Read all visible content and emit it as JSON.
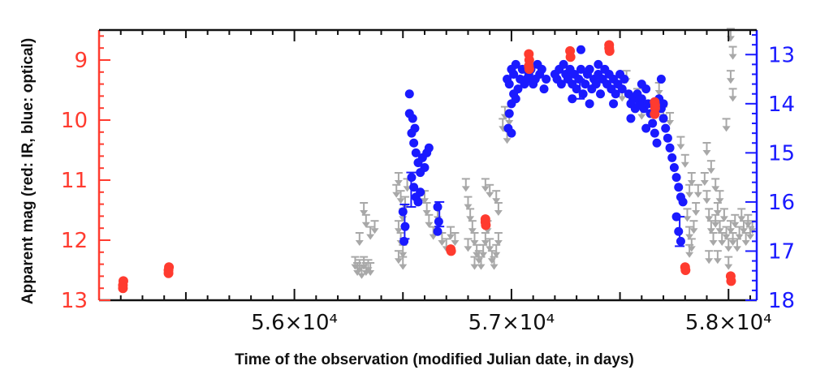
{
  "chart_data": {
    "type": "scatter",
    "title": "",
    "xlabel": "Time of the observation (modified Julian date, in days)",
    "ylabel": "Apparent mag (red: IR, blue: optical)",
    "xlim": [
      55100,
      58130
    ],
    "ylim_left": [
      13,
      8.5
    ],
    "ylim_right": [
      18,
      12.5
    ],
    "y_inverted": true,
    "grid": false,
    "legend": "none",
    "x_ticks": [
      {
        "value": 56000,
        "label": "5.6×10⁴"
      },
      {
        "value": 57000,
        "label": "5.7×10⁴"
      },
      {
        "value": 58000,
        "label": "5.8×10⁴"
      }
    ],
    "y_left_ticks": [
      {
        "value": 9,
        "label": "9"
      },
      {
        "value": 10,
        "label": "10"
      },
      {
        "value": 11,
        "label": "11"
      },
      {
        "value": 12,
        "label": "12"
      },
      {
        "value": 13,
        "label": "13"
      }
    ],
    "y_right_ticks": [
      {
        "value": 13,
        "label": "13"
      },
      {
        "value": 14,
        "label": "14"
      },
      {
        "value": 15,
        "label": "15"
      },
      {
        "value": 16,
        "label": "16"
      },
      {
        "value": 17,
        "label": "17"
      },
      {
        "value": 18,
        "label": "18"
      }
    ],
    "colors": {
      "ir": "#ff3b2f",
      "optical": "#1a1aff",
      "upper_limit": "#a8a8a8",
      "left_axis": "#ff3b2f",
      "right_axis": "#1a1aff",
      "bottom_axis": "#111111"
    },
    "series": [
      {
        "name": "IR",
        "axis": "left",
        "points": [
          [
            55210,
            12.75
          ],
          [
            55212,
            12.68
          ],
          [
            55210,
            12.8
          ],
          [
            55420,
            12.55
          ],
          [
            55422,
            12.45
          ],
          [
            55420,
            12.5
          ],
          [
            56720,
            12.15
          ],
          [
            56722,
            12.18
          ],
          [
            56880,
            11.7
          ],
          [
            56882,
            11.75
          ],
          [
            56880,
            11.65
          ],
          [
            57080,
            8.9
          ],
          [
            57082,
            9.0
          ],
          [
            57080,
            9.1
          ],
          [
            57082,
            9.15
          ],
          [
            57270,
            8.85
          ],
          [
            57272,
            8.95
          ],
          [
            57450,
            8.75
          ],
          [
            57452,
            8.85
          ],
          [
            57450,
            8.8
          ],
          [
            57660,
            9.7
          ],
          [
            57662,
            9.8
          ],
          [
            57660,
            9.9
          ],
          [
            57662,
            9.75
          ],
          [
            57800,
            12.45
          ],
          [
            57802,
            12.5
          ],
          [
            58010,
            12.6
          ],
          [
            58012,
            12.68
          ]
        ]
      },
      {
        "name": "optical",
        "axis": "right",
        "points": [
          [
            56530,
            14.2
          ],
          [
            56540,
            14.6
          ],
          [
            56550,
            14.8
          ],
          [
            56560,
            15.0
          ],
          [
            56570,
            15.2
          ],
          [
            56580,
            15.4
          ],
          [
            56590,
            15.1
          ],
          [
            56600,
            15.3
          ],
          [
            56610,
            15.0
          ],
          [
            56620,
            14.9
          ],
          [
            56540,
            15.5
          ],
          [
            56550,
            15.7
          ],
          [
            56560,
            15.9
          ],
          [
            56570,
            16.0
          ],
          [
            56580,
            15.8
          ],
          [
            56500,
            16.2
          ],
          [
            56510,
            16.5
          ],
          [
            56505,
            16.8
          ],
          [
            56530,
            13.8
          ],
          [
            56545,
            14.3
          ],
          [
            56555,
            14.5
          ],
          [
            56660,
            16.1
          ],
          [
            56665,
            16.4
          ],
          [
            56660,
            16.6
          ],
          [
            56980,
            13.5
          ],
          [
            56990,
            13.6
          ],
          [
            57000,
            13.3
          ],
          [
            57010,
            13.4
          ],
          [
            57020,
            13.2
          ],
          [
            57030,
            13.7
          ],
          [
            57040,
            13.5
          ],
          [
            57050,
            13.3
          ],
          [
            57060,
            13.6
          ],
          [
            57000,
            14.0
          ],
          [
            57010,
            13.8
          ],
          [
            57020,
            13.9
          ],
          [
            56990,
            14.2
          ],
          [
            56985,
            14.5
          ],
          [
            57000,
            14.6
          ],
          [
            57070,
            13.5
          ],
          [
            57080,
            13.4
          ],
          [
            57090,
            13.3
          ],
          [
            57100,
            13.6
          ],
          [
            57110,
            13.5
          ],
          [
            57120,
            13.2
          ],
          [
            57130,
            13.4
          ],
          [
            57140,
            13.3
          ],
          [
            57150,
            13.7
          ],
          [
            57160,
            13.5
          ],
          [
            57200,
            13.4
          ],
          [
            57210,
            13.5
          ],
          [
            57220,
            13.3
          ],
          [
            57230,
            13.6
          ],
          [
            57240,
            13.2
          ],
          [
            57250,
            13.4
          ],
          [
            57260,
            13.5
          ],
          [
            57270,
            13.3
          ],
          [
            57280,
            13.6
          ],
          [
            57290,
            13.4
          ],
          [
            57300,
            13.7
          ],
          [
            57310,
            13.5
          ],
          [
            57320,
            13.3
          ],
          [
            57330,
            13.8
          ],
          [
            57340,
            13.6
          ],
          [
            57350,
            13.4
          ],
          [
            57360,
            13.3
          ],
          [
            57370,
            13.7
          ],
          [
            57380,
            13.5
          ],
          [
            57390,
            13.6
          ],
          [
            57400,
            13.4
          ],
          [
            57410,
            13.8
          ],
          [
            57420,
            13.5
          ],
          [
            57430,
            13.3
          ],
          [
            57440,
            13.6
          ],
          [
            57450,
            13.4
          ],
          [
            57460,
            13.7
          ],
          [
            57470,
            13.5
          ],
          [
            57480,
            13.8
          ],
          [
            57490,
            13.6
          ],
          [
            57500,
            13.4
          ],
          [
            57510,
            13.7
          ],
          [
            57520,
            13.5
          ],
          [
            57320,
            12.9
          ],
          [
            57400,
            13.2
          ],
          [
            57280,
            13.9
          ],
          [
            57360,
            14.0
          ],
          [
            57470,
            14.0
          ],
          [
            57540,
            13.8
          ],
          [
            57550,
            14.0
          ],
          [
            57560,
            13.9
          ],
          [
            57570,
            14.1
          ],
          [
            57580,
            13.8
          ],
          [
            57590,
            14.0
          ],
          [
            57600,
            13.9
          ],
          [
            57610,
            14.1
          ],
          [
            57620,
            13.7
          ],
          [
            57630,
            14.0
          ],
          [
            57640,
            14.2
          ],
          [
            57650,
            14.4
          ],
          [
            57660,
            14.6
          ],
          [
            57670,
            14.8
          ],
          [
            57680,
            13.9
          ],
          [
            57690,
            14.1
          ],
          [
            57700,
            14.3
          ],
          [
            57710,
            14.5
          ],
          [
            57720,
            14.7
          ],
          [
            57730,
            14.9
          ],
          [
            57740,
            15.1
          ],
          [
            57750,
            15.3
          ],
          [
            57760,
            15.5
          ],
          [
            57770,
            15.7
          ],
          [
            57780,
            15.9
          ],
          [
            57790,
            16.0
          ],
          [
            57760,
            16.3
          ],
          [
            57770,
            16.6
          ],
          [
            57780,
            16.8
          ],
          [
            57690,
            13.5
          ],
          [
            57600,
            13.6
          ],
          [
            57550,
            14.3
          ],
          [
            57620,
            14.5
          ],
          [
            57700,
            14.0
          ]
        ]
      },
      {
        "name": "upper limits",
        "axis": "left",
        "points": [
          [
            56280,
            12.4
          ],
          [
            56290,
            12.5
          ],
          [
            56300,
            12.45
          ],
          [
            56310,
            12.55
          ],
          [
            56320,
            12.4
          ],
          [
            56330,
            12.5
          ],
          [
            56340,
            12.45
          ],
          [
            56350,
            12.5
          ],
          [
            56320,
            11.5
          ],
          [
            56330,
            11.7
          ],
          [
            56350,
            11.9
          ],
          [
            56370,
            11.8
          ],
          [
            56300,
            12.0
          ],
          [
            56480,
            11.0
          ],
          [
            56490,
            11.3
          ],
          [
            56500,
            11.6
          ],
          [
            56480,
            11.8
          ],
          [
            56490,
            12.0
          ],
          [
            56500,
            12.2
          ],
          [
            56510,
            11.4
          ],
          [
            56520,
            11.1
          ],
          [
            56480,
            12.3
          ],
          [
            56500,
            12.4
          ],
          [
            56470,
            11.2
          ],
          [
            56600,
            11.3
          ],
          [
            56610,
            11.5
          ],
          [
            56620,
            11.7
          ],
          [
            56640,
            11.9
          ],
          [
            56660,
            11.6
          ],
          [
            56680,
            12.0
          ],
          [
            56700,
            12.1
          ],
          [
            56720,
            11.9
          ],
          [
            56740,
            12.0
          ],
          [
            56790,
            11.1
          ],
          [
            56800,
            11.4
          ],
          [
            56810,
            11.6
          ],
          [
            56820,
            11.8
          ],
          [
            56830,
            12.0
          ],
          [
            56840,
            12.2
          ],
          [
            56850,
            12.3
          ],
          [
            56860,
            12.4
          ],
          [
            56870,
            12.2
          ],
          [
            56880,
            12.0
          ],
          [
            56890,
            11.8
          ],
          [
            56900,
            12.1
          ],
          [
            56910,
            12.3
          ],
          [
            56920,
            12.4
          ],
          [
            56930,
            12.2
          ],
          [
            56940,
            12.0
          ],
          [
            56800,
            12.1
          ],
          [
            56830,
            12.4
          ],
          [
            56880,
            11.1
          ],
          [
            56900,
            11.2
          ],
          [
            56930,
            11.3
          ],
          [
            56940,
            11.5
          ],
          [
            56960,
            10.1
          ],
          [
            56970,
            9.9
          ],
          [
            56980,
            10.3
          ],
          [
            56990,
            10.0
          ],
          [
            57510,
            9.6
          ],
          [
            57530,
            9.3
          ],
          [
            57580,
            9.6
          ],
          [
            57600,
            9.9
          ],
          [
            57680,
            9.5
          ],
          [
            57700,
            9.9
          ],
          [
            57730,
            10.0
          ],
          [
            57780,
            10.4
          ],
          [
            57800,
            10.7
          ],
          [
            57820,
            11.2
          ],
          [
            57810,
            11.6
          ],
          [
            57820,
            11.9
          ],
          [
            57830,
            12.1
          ],
          [
            57840,
            11.8
          ],
          [
            57850,
            11.5
          ],
          [
            57860,
            11.2
          ],
          [
            57820,
            12.2
          ],
          [
            57830,
            11.0
          ],
          [
            57890,
            11.0
          ],
          [
            57900,
            11.3
          ],
          [
            57910,
            11.6
          ],
          [
            57920,
            11.8
          ],
          [
            57930,
            12.0
          ],
          [
            57940,
            11.7
          ],
          [
            57950,
            11.5
          ],
          [
            57960,
            11.8
          ],
          [
            57970,
            12.0
          ],
          [
            57980,
            11.6
          ],
          [
            57990,
            11.9
          ],
          [
            58000,
            12.1
          ],
          [
            58010,
            11.8
          ],
          [
            58020,
            12.0
          ],
          [
            58030,
            11.7
          ],
          [
            58040,
            12.1
          ],
          [
            58050,
            11.9
          ],
          [
            58060,
            11.6
          ],
          [
            58070,
            11.8
          ],
          [
            58080,
            12.0
          ],
          [
            58090,
            11.7
          ],
          [
            58100,
            11.9
          ],
          [
            58110,
            11.8
          ],
          [
            57900,
            10.5
          ],
          [
            57920,
            10.8
          ],
          [
            57940,
            11.1
          ],
          [
            57960,
            11.3
          ],
          [
            58010,
            8.6
          ],
          [
            58020,
            8.9
          ],
          [
            58010,
            9.3
          ],
          [
            58020,
            9.6
          ],
          [
            57990,
            10.1
          ],
          [
            57910,
            12.3
          ],
          [
            57950,
            12.3
          ],
          [
            58000,
            12.4
          ]
        ]
      }
    ],
    "error_bars": [
      {
        "axis": "right",
        "x": 56508,
        "low": 16.05,
        "high": 16.75
      },
      {
        "axis": "right",
        "x": 56538,
        "low": 15.4,
        "high": 16.1
      },
      {
        "axis": "right",
        "x": 56668,
        "low": 16.0,
        "high": 16.5
      },
      {
        "axis": "right",
        "x": 57775,
        "low": 16.3,
        "high": 16.9
      },
      {
        "axis": "right",
        "x": 57315,
        "low": 13.5,
        "high": 13.9
      }
    ]
  }
}
